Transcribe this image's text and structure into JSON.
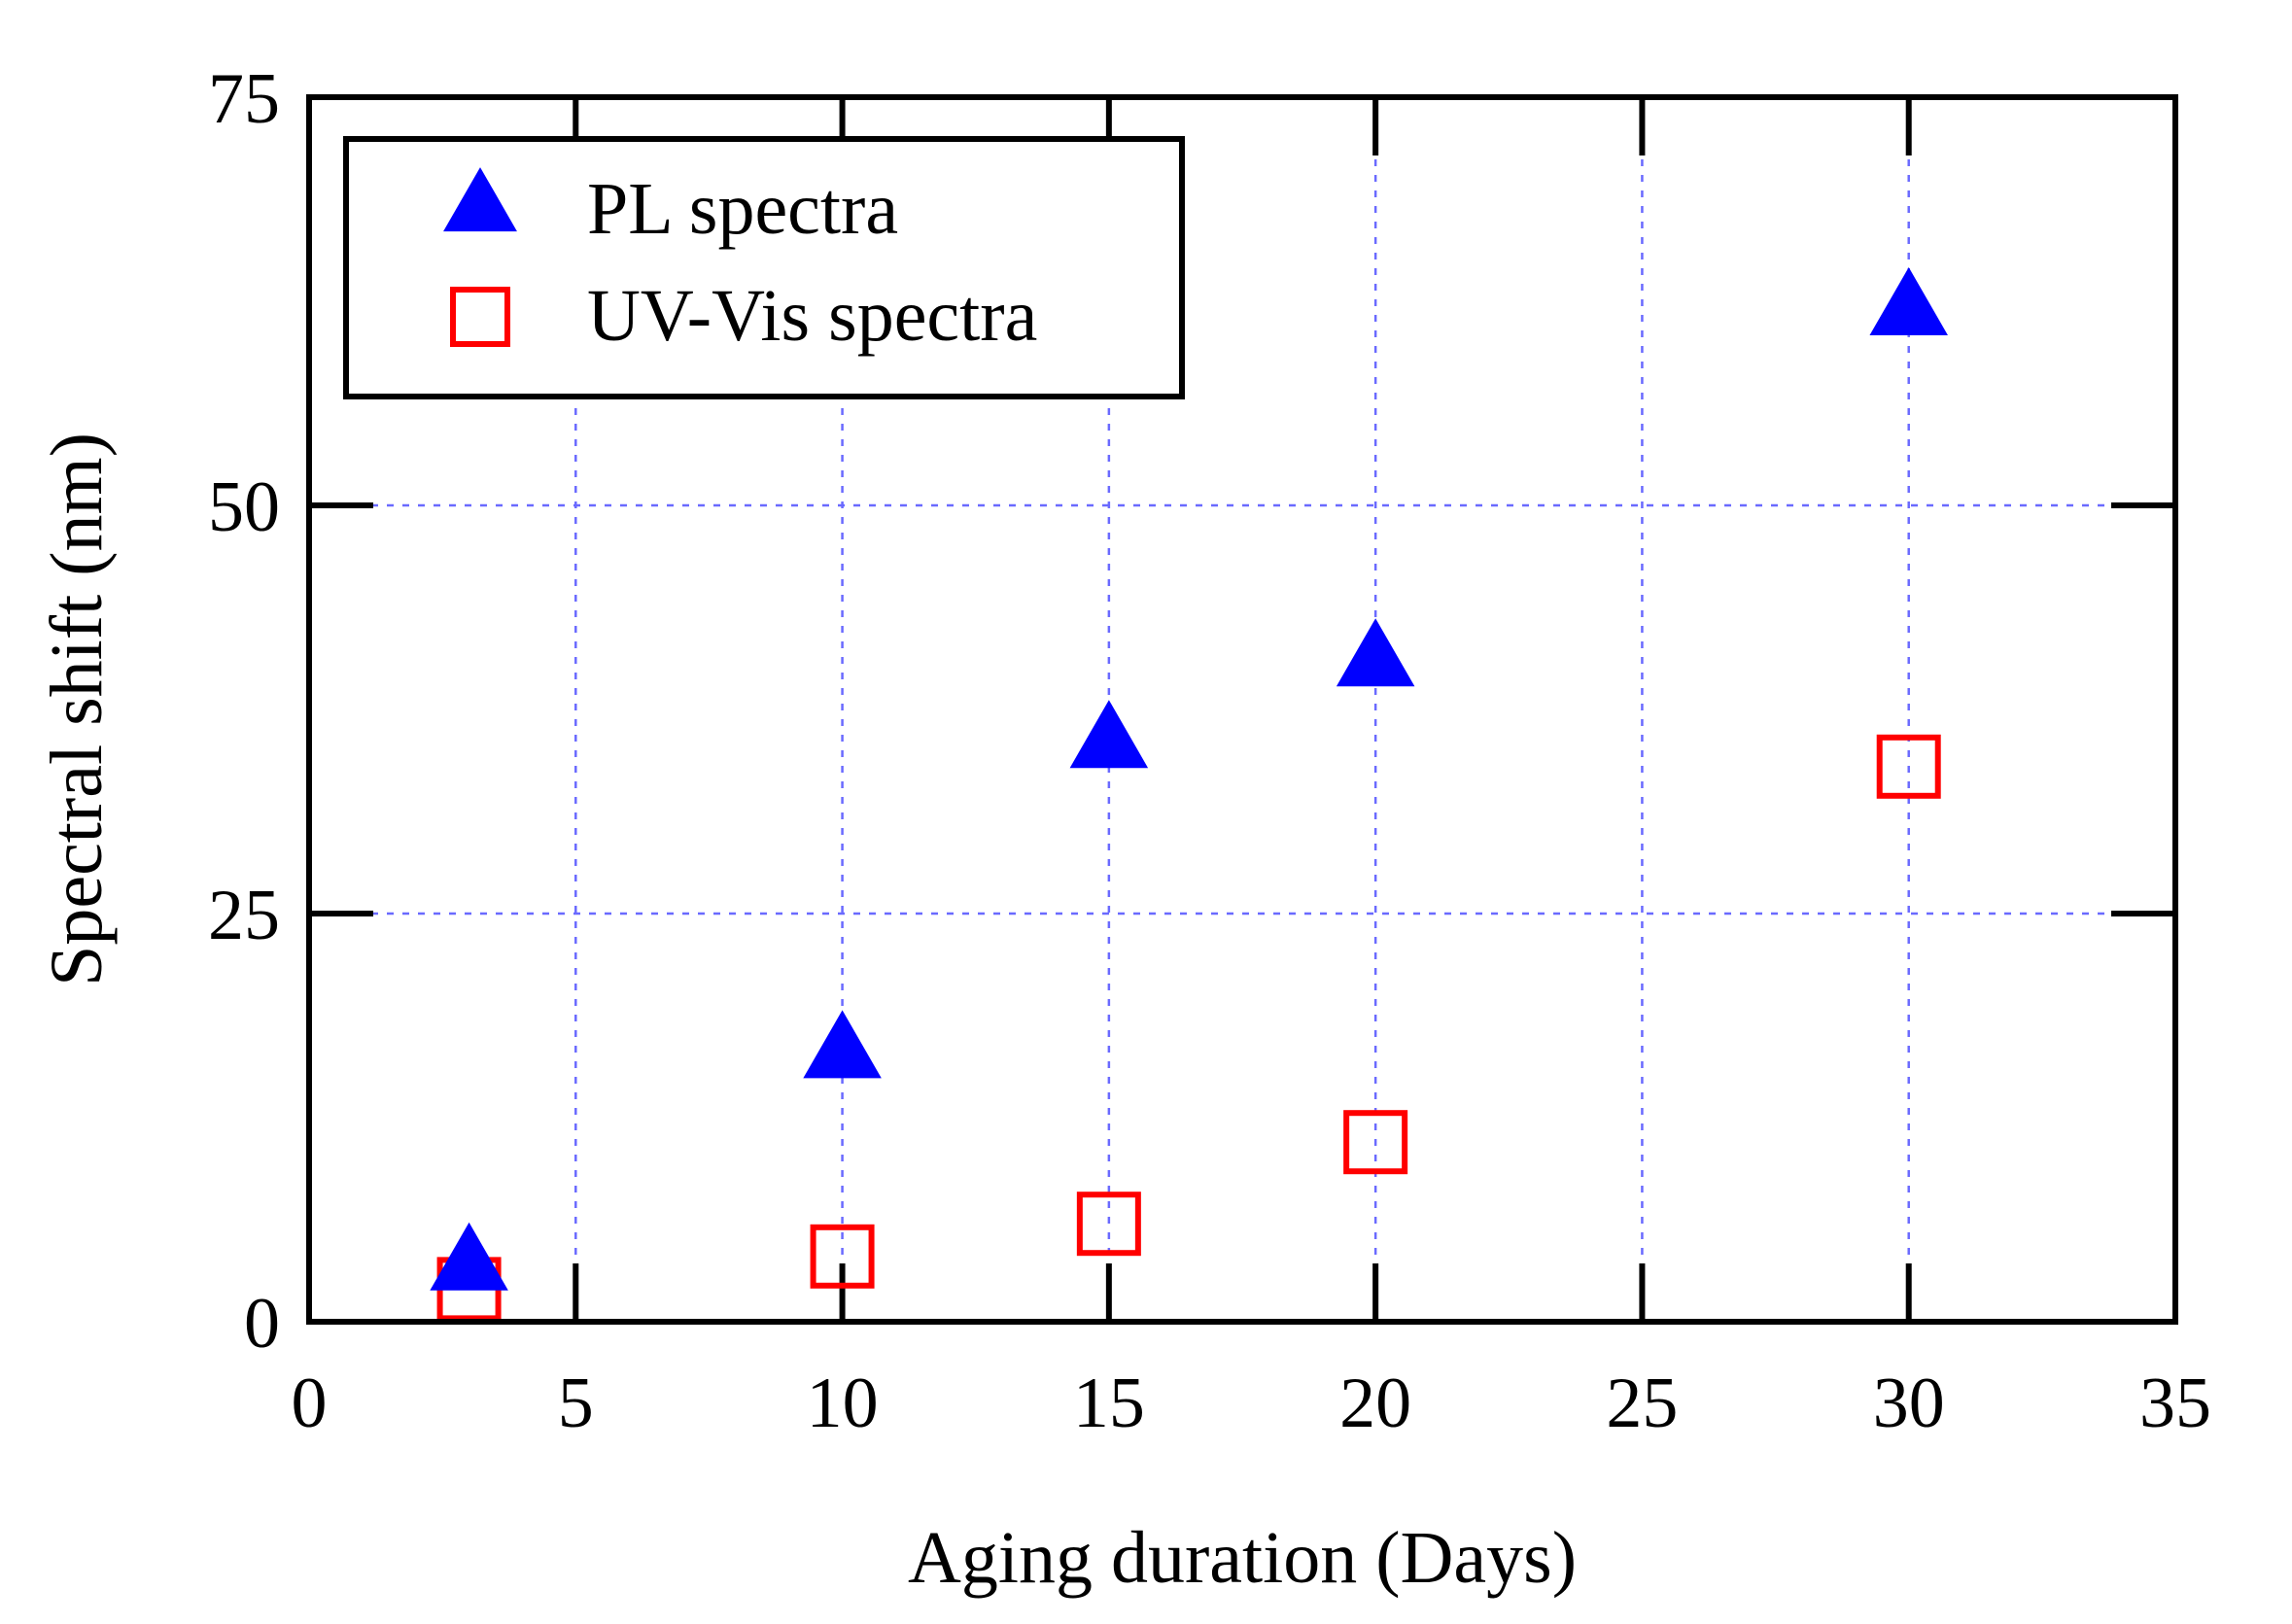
{
  "chart_data": {
    "type": "scatter",
    "title": "",
    "xlabel": "Aging duration (Days)",
    "ylabel": "Spectral shift (nm)",
    "xlim": [
      0,
      35
    ],
    "ylim": [
      0,
      75
    ],
    "xticks": [
      0,
      5,
      10,
      15,
      20,
      25,
      30,
      35
    ],
    "yticks": [
      0,
      25,
      50,
      75
    ],
    "xtick_labels": [
      "0",
      "5",
      "10",
      "15",
      "20",
      "25",
      "30",
      "35"
    ],
    "ytick_labels": [
      "0",
      "25",
      "50",
      "75"
    ],
    "grid": true,
    "legend_position": "top-left",
    "series": [
      {
        "name": "PL spectra",
        "marker": "filled-triangle",
        "color": "#0000ff",
        "x": [
          3,
          10,
          15,
          20,
          30
        ],
        "y": [
          3.5,
          16.5,
          35.5,
          40.5,
          62
        ]
      },
      {
        "name": "UV-Vis spectra",
        "marker": "open-square",
        "color": "#ff0000",
        "x": [
          3,
          10,
          15,
          20,
          30
        ],
        "y": [
          2,
          4,
          6,
          11,
          34
        ]
      }
    ]
  }
}
